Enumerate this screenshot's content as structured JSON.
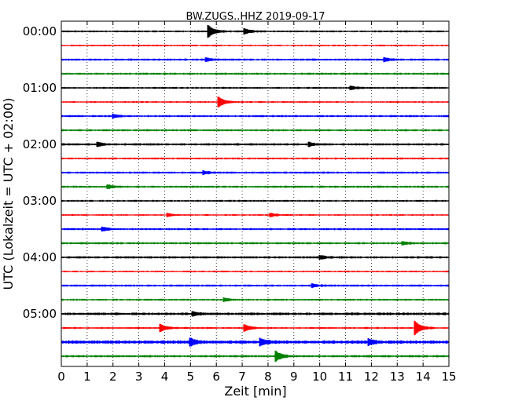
{
  "chart_data": {
    "type": "line",
    "title": "BW.ZUGS..HHZ 2019-09-17",
    "xlabel": "Zeit  [min]",
    "ylabel": "UTC (Lokalzeit = UTC + 02:00)",
    "xlim": [
      0,
      15
    ],
    "x_ticks": [
      "0",
      "1",
      "2",
      "3",
      "4",
      "5",
      "6",
      "7",
      "8",
      "9",
      "10",
      "11",
      "12",
      "13",
      "14",
      "15"
    ],
    "y_ticks": [
      {
        "label": "00:00",
        "row": 0
      },
      {
        "label": "01:00",
        "row": 4
      },
      {
        "label": "02:00",
        "row": 8
      },
      {
        "label": "03:00",
        "row": 12
      },
      {
        "label": "04:00",
        "row": 16
      },
      {
        "label": "05:00",
        "row": 20
      }
    ],
    "grid": "vertical dotted",
    "trace_interval_min": 15,
    "color_cycle": [
      "#000000",
      "#ff0000",
      "#0000ff",
      "#008000"
    ],
    "rows": [
      {
        "row": 0,
        "noise": 0.9,
        "events": [
          {
            "t": 5.7,
            "amp": 7
          },
          {
            "t": 7.1,
            "amp": 3
          }
        ]
      },
      {
        "row": 1,
        "noise": 0.8,
        "events": []
      },
      {
        "row": 2,
        "noise": 1.0,
        "events": [
          {
            "t": 5.6,
            "amp": 2
          },
          {
            "t": 12.5,
            "amp": 2
          }
        ]
      },
      {
        "row": 3,
        "noise": 1.0,
        "events": []
      },
      {
        "row": 4,
        "noise": 0.9,
        "events": [
          {
            "t": 11.2,
            "amp": 2
          }
        ]
      },
      {
        "row": 5,
        "noise": 0.8,
        "events": [
          {
            "t": 6.1,
            "amp": 6
          }
        ]
      },
      {
        "row": 6,
        "noise": 1.0,
        "events": [
          {
            "t": 2.0,
            "amp": 2
          }
        ]
      },
      {
        "row": 7,
        "noise": 1.0,
        "events": []
      },
      {
        "row": 8,
        "noise": 1.1,
        "events": [
          {
            "t": 1.4,
            "amp": 2
          },
          {
            "t": 9.6,
            "amp": 2
          }
        ]
      },
      {
        "row": 9,
        "noise": 0.9,
        "events": []
      },
      {
        "row": 10,
        "noise": 1.0,
        "events": [
          {
            "t": 5.5,
            "amp": 2
          }
        ]
      },
      {
        "row": 11,
        "noise": 1.0,
        "events": [
          {
            "t": 1.8,
            "amp": 2
          }
        ]
      },
      {
        "row": 12,
        "noise": 0.9,
        "events": []
      },
      {
        "row": 13,
        "noise": 0.8,
        "events": [
          {
            "t": 4.1,
            "amp": 2
          },
          {
            "t": 8.1,
            "amp": 2
          }
        ]
      },
      {
        "row": 14,
        "noise": 1.0,
        "events": [
          {
            "t": 1.6,
            "amp": 2
          }
        ]
      },
      {
        "row": 15,
        "noise": 1.0,
        "events": [
          {
            "t": 13.2,
            "amp": 2
          }
        ]
      },
      {
        "row": 16,
        "noise": 1.1,
        "events": [
          {
            "t": 10.0,
            "amp": 2
          }
        ]
      },
      {
        "row": 17,
        "noise": 0.8,
        "events": []
      },
      {
        "row": 18,
        "noise": 1.0,
        "events": [
          {
            "t": 9.7,
            "amp": 2
          }
        ]
      },
      {
        "row": 19,
        "noise": 0.9,
        "events": [
          {
            "t": 6.3,
            "amp": 2
          }
        ]
      },
      {
        "row": 20,
        "noise": 1.3,
        "events": [
          {
            "t": 5.1,
            "amp": 2
          }
        ]
      },
      {
        "row": 21,
        "noise": 0.9,
        "events": [
          {
            "t": 3.85,
            "amp": 4
          },
          {
            "t": 7.1,
            "amp": 4
          },
          {
            "t": 13.7,
            "amp": 8
          }
        ]
      },
      {
        "row": 22,
        "noise": 1.6,
        "events": [
          {
            "t": 5.0,
            "amp": 4
          },
          {
            "t": 7.7,
            "amp": 4
          },
          {
            "t": 11.9,
            "amp": 3
          }
        ]
      },
      {
        "row": 23,
        "noise": 1.1,
        "events": [
          {
            "t": 8.3,
            "amp": 6
          }
        ]
      }
    ]
  }
}
